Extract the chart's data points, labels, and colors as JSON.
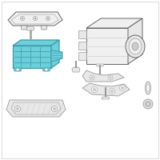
{
  "background_color": "#ffffff",
  "border_color": "#cccccc",
  "part_highlight_color": "#6dcfda",
  "part_highlight_edge": "#3a9aaa",
  "line_color": "#666666",
  "light_gray": "#cccccc",
  "medium_gray": "#999999",
  "fill_gray": "#f0f0f0",
  "fill_gray2": "#e8e8e8"
}
